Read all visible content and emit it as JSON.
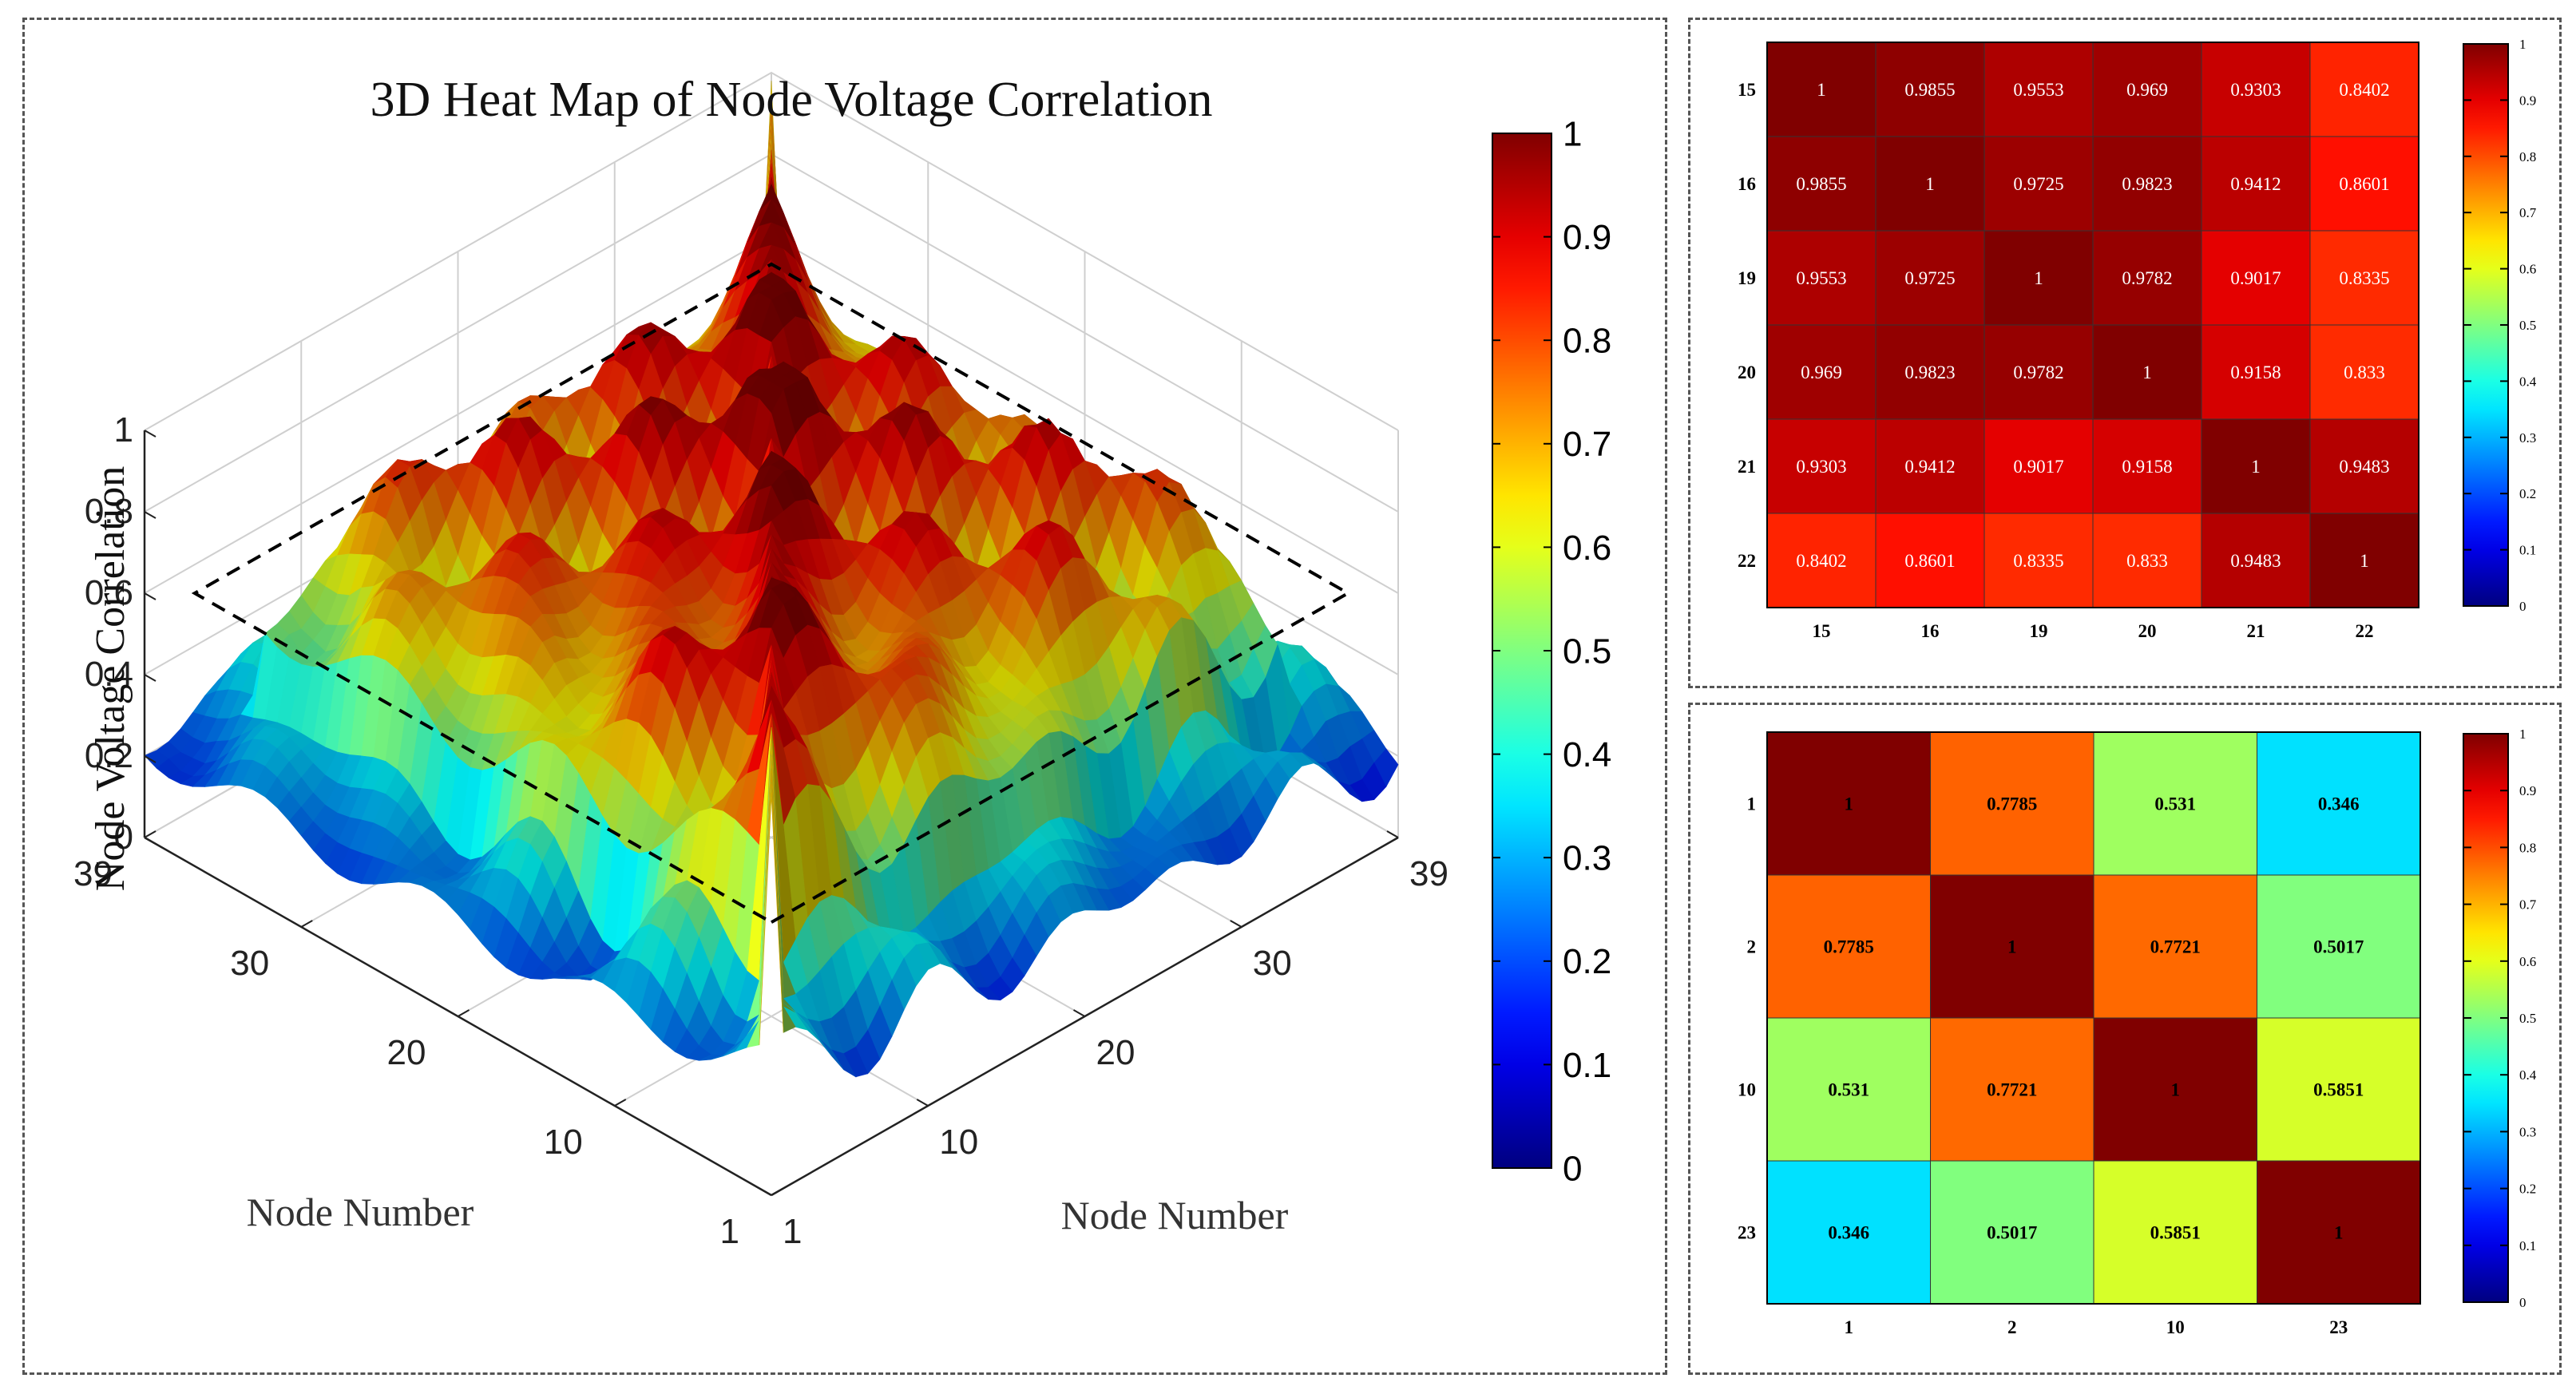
{
  "chart_data": [
    {
      "type": "surface3d",
      "title": "3D Heat Map of Node Voltage Correlation",
      "xlabel": "Node Number",
      "ylabel": "Node Number",
      "zlabel": "Node Voltage Correlation",
      "x_range": [
        1,
        39
      ],
      "y_range": [
        1,
        39
      ],
      "x_ticks": [
        "1",
        "10",
        "20",
        "30",
        "39"
      ],
      "y_ticks": [
        "1",
        "10",
        "20",
        "30",
        "39"
      ],
      "z_ticks": [
        "0",
        "0.2",
        "0.4",
        "0.6",
        "0.8",
        "1"
      ],
      "zlim": [
        0,
        1
      ],
      "colormap": "jet",
      "colorbar_ticks": [
        "0",
        "0.1",
        "0.2",
        "0.3",
        "0.4",
        "0.5",
        "0.6",
        "0.7",
        "0.8",
        "0.9",
        "1"
      ],
      "contour_level": 0.6,
      "grid": true
    },
    {
      "type": "heatmap",
      "row_labels": [
        "15",
        "16",
        "19",
        "20",
        "21",
        "22"
      ],
      "col_labels": [
        "15",
        "16",
        "19",
        "20",
        "21",
        "22"
      ],
      "cell_text": [
        [
          "1",
          "0.9855",
          "0.9553",
          "0.969",
          "0.9303",
          "0.8402"
        ],
        [
          "0.9855",
          "1",
          "0.9725",
          "0.9823",
          "0.9412",
          "0.8601"
        ],
        [
          "0.9553",
          "0.9725",
          "1",
          "0.9782",
          "0.9017",
          "0.8335"
        ],
        [
          "0.969",
          "0.9823",
          "0.9782",
          "1",
          "0.9158",
          "0.833"
        ],
        [
          "0.9303",
          "0.9412",
          "0.9017",
          "0.9158",
          "1",
          "0.9483"
        ],
        [
          "0.8402",
          "0.8601",
          "0.8335",
          "0.833",
          "0.9483",
          "1"
        ]
      ],
      "colormap": "jet",
      "colorbar_ticks": [
        "0",
        "0.1",
        "0.2",
        "0.3",
        "0.4",
        "0.5",
        "0.6",
        "0.7",
        "0.8",
        "0.9",
        "1"
      ],
      "clim": [
        0,
        1
      ],
      "text_color": "#ffffff"
    },
    {
      "type": "heatmap",
      "row_labels": [
        "1",
        "2",
        "10",
        "23"
      ],
      "col_labels": [
        "1",
        "2",
        "10",
        "23"
      ],
      "cell_text": [
        [
          "1",
          "0.7785",
          "0.531",
          "0.346"
        ],
        [
          "0.7785",
          "1",
          "0.7721",
          "0.5017"
        ],
        [
          "0.531",
          "0.7721",
          "1",
          "0.5851"
        ],
        [
          "0.346",
          "0.5017",
          "0.5851",
          "1"
        ]
      ],
      "colormap": "jet",
      "colorbar_ticks": [
        "0",
        "0.1",
        "0.2",
        "0.3",
        "0.4",
        "0.5",
        "0.6",
        "0.7",
        "0.8",
        "0.9",
        "1"
      ],
      "clim": [
        0,
        1
      ],
      "text_color": "#000000"
    }
  ]
}
